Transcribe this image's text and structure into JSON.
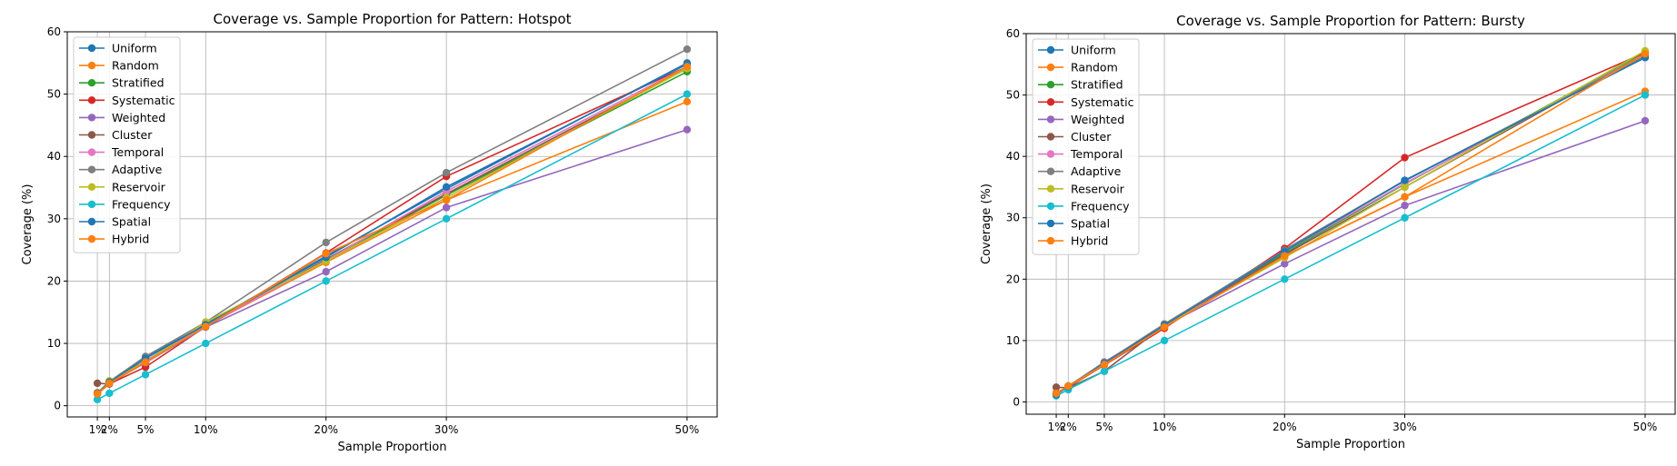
{
  "colors": {
    "Uniform": "#1f77b4",
    "Random": "#ff7f0e",
    "Stratified": "#2ca02c",
    "Systematic": "#d62728",
    "Weighted": "#9467bd",
    "Cluster": "#8c564b",
    "Temporal": "#e377c2",
    "Adaptive": "#7f7f7f",
    "Reservoir": "#bcbd22",
    "Frequency": "#17becf",
    "Spatial": "#1f77b4",
    "Hybrid": "#ff7f0e"
  },
  "chart_data": [
    {
      "type": "line",
      "title": "Coverage vs. Sample Proportion for Pattern: Hotspot",
      "xlabel": "Sample Proportion",
      "ylabel": "Coverage (%)",
      "x": [
        1,
        2,
        5,
        10,
        20,
        30,
        50
      ],
      "xticklabels": [
        "1%",
        "2%",
        "5%",
        "10%",
        "20%",
        "30%",
        "50%"
      ],
      "xlim": [
        -1.5,
        52.5
      ],
      "ylim": [
        -1.8,
        60
      ],
      "yticks": [
        0,
        10,
        20,
        30,
        40,
        50,
        60
      ],
      "grid": true,
      "legend": "upper left",
      "series": [
        {
          "name": "Uniform",
          "values": [
            2.0,
            3.9,
            7.7,
            13.1,
            24.0,
            34.8,
            55.0
          ]
        },
        {
          "name": "Random",
          "values": [
            2.1,
            3.6,
            7.0,
            12.8,
            23.0,
            33.0,
            48.8
          ]
        },
        {
          "name": "Stratified",
          "values": [
            2.0,
            3.9,
            7.2,
            13.0,
            23.3,
            33.8,
            53.6
          ]
        },
        {
          "name": "Systematic",
          "values": [
            1.9,
            3.5,
            6.2,
            12.7,
            24.5,
            36.8,
            54.4
          ]
        },
        {
          "name": "Weighted",
          "values": [
            2.0,
            3.6,
            6.9,
            12.6,
            21.5,
            31.8,
            44.3
          ]
        },
        {
          "name": "Cluster",
          "values": [
            3.6,
            3.5,
            7.0,
            12.7,
            23.5,
            34.0,
            54.1
          ]
        },
        {
          "name": "Temporal",
          "values": [
            1.9,
            3.6,
            7.2,
            12.8,
            23.3,
            34.4,
            54.4
          ]
        },
        {
          "name": "Adaptive",
          "values": [
            2.0,
            3.9,
            7.9,
            13.4,
            26.2,
            37.4,
            57.2
          ]
        },
        {
          "name": "Reservoir",
          "values": [
            2.0,
            4.0,
            7.0,
            13.4,
            23.2,
            33.4,
            54.1
          ]
        },
        {
          "name": "Frequency",
          "values": [
            1.0,
            2.0,
            5.0,
            10.0,
            20.0,
            30.0,
            50.0
          ]
        },
        {
          "name": "Spatial",
          "values": [
            2.0,
            3.8,
            7.6,
            13.0,
            23.8,
            35.1,
            54.8
          ]
        },
        {
          "name": "Hybrid",
          "values": [
            1.9,
            3.6,
            7.0,
            12.7,
            24.4,
            33.0,
            54.4
          ]
        }
      ]
    },
    {
      "type": "line",
      "title": "Coverage vs. Sample Proportion for Pattern: Bursty",
      "xlabel": "Sample Proportion",
      "ylabel": "Coverage (%)",
      "x": [
        1,
        2,
        5,
        10,
        20,
        30,
        50
      ],
      "xticklabels": [
        "1%",
        "2%",
        "5%",
        "10%",
        "20%",
        "30%",
        "50%"
      ],
      "xlim": [
        -1.5,
        52.5
      ],
      "ylim": [
        -2.0,
        60
      ],
      "yticks": [
        0,
        10,
        20,
        30,
        40,
        50,
        60
      ],
      "grid": true,
      "legend": "upper left",
      "series": [
        {
          "name": "Uniform",
          "values": [
            1.3,
            2.5,
            6.3,
            12.6,
            24.8,
            36.0,
            56.5
          ]
        },
        {
          "name": "Random",
          "values": [
            1.4,
            2.6,
            6.2,
            12.2,
            23.8,
            33.4,
            50.6
          ]
        },
        {
          "name": "Stratified",
          "values": [
            1.3,
            2.6,
            6.3,
            12.5,
            24.2,
            35.5,
            57.0
          ]
        },
        {
          "name": "Systematic",
          "values": [
            1.5,
            2.4,
            6.0,
            12.0,
            25.0,
            39.8,
            56.9
          ]
        },
        {
          "name": "Weighted",
          "values": [
            1.3,
            2.5,
            6.5,
            12.4,
            22.5,
            32.0,
            45.8
          ]
        },
        {
          "name": "Cluster",
          "values": [
            2.4,
            2.3,
            5.0,
            12.5,
            24.0,
            35.0,
            56.7
          ]
        },
        {
          "name": "Temporal",
          "values": [
            1.2,
            2.5,
            6.3,
            12.4,
            24.5,
            35.6,
            56.5
          ]
        },
        {
          "name": "Adaptive",
          "values": [
            1.3,
            2.6,
            6.4,
            12.7,
            24.7,
            36.1,
            56.3
          ]
        },
        {
          "name": "Reservoir",
          "values": [
            1.4,
            2.5,
            6.1,
            12.4,
            23.5,
            35.0,
            57.2
          ]
        },
        {
          "name": "Frequency",
          "values": [
            1.0,
            2.0,
            5.0,
            10.0,
            20.0,
            30.0,
            50.0
          ]
        },
        {
          "name": "Spatial",
          "values": [
            1.2,
            2.5,
            6.3,
            12.5,
            24.5,
            36.1,
            56.1
          ]
        },
        {
          "name": "Hybrid",
          "values": [
            1.4,
            2.6,
            6.1,
            12.2,
            23.8,
            33.4,
            56.7
          ]
        }
      ]
    }
  ]
}
